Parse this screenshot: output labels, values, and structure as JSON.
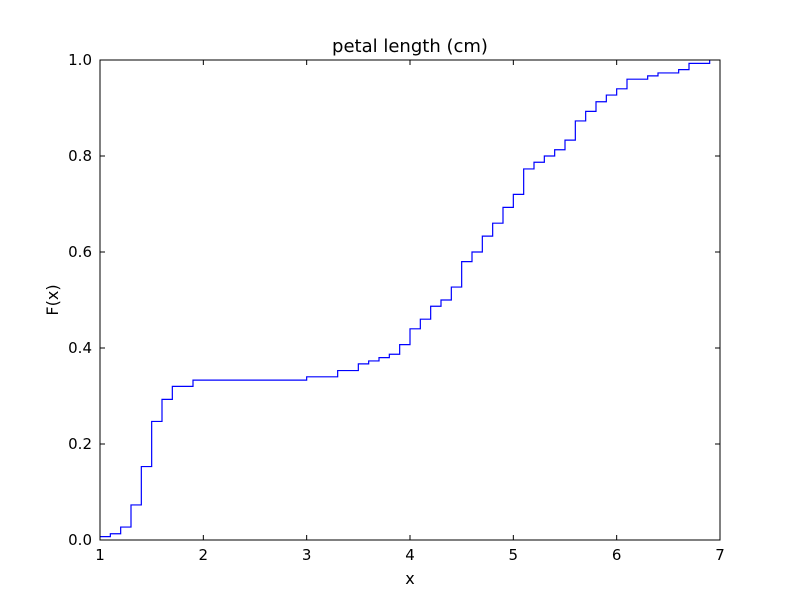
{
  "chart_data": {
    "type": "line",
    "step": "post",
    "title": "petal length (cm)",
    "xlabel": "x",
    "ylabel": "F(x)",
    "xlim": [
      1,
      7
    ],
    "ylim": [
      0,
      1
    ],
    "xticks": [
      1,
      2,
      3,
      4,
      5,
      6,
      7
    ],
    "xtick_labels": [
      "1",
      "2",
      "3",
      "4",
      "5",
      "6",
      "7"
    ],
    "yticks": [
      0,
      0.2,
      0.4,
      0.6,
      0.8,
      1.0
    ],
    "ytick_labels": [
      "0.0",
      "0.2",
      "0.4",
      "0.6",
      "0.8",
      "1.0"
    ],
    "grid": false,
    "legend": "none",
    "line_color": "#0000ff",
    "series": [
      {
        "x": [
          1.0,
          1.1,
          1.2,
          1.3,
          1.4,
          1.5,
          1.6,
          1.7,
          1.9,
          3.0,
          3.3,
          3.5,
          3.6,
          3.7,
          3.8,
          3.9,
          4.0,
          4.1,
          4.2,
          4.3,
          4.4,
          4.5,
          4.6,
          4.7,
          4.8,
          4.9,
          5.0,
          5.1,
          5.2,
          5.3,
          5.4,
          5.5,
          5.6,
          5.7,
          5.8,
          5.9,
          6.0,
          6.1,
          6.3,
          6.4,
          6.6,
          6.7,
          6.9
        ],
        "y": [
          0.007,
          0.013,
          0.027,
          0.073,
          0.153,
          0.247,
          0.293,
          0.32,
          0.333,
          0.34,
          0.353,
          0.367,
          0.373,
          0.38,
          0.387,
          0.407,
          0.44,
          0.46,
          0.487,
          0.5,
          0.527,
          0.58,
          0.6,
          0.633,
          0.66,
          0.693,
          0.72,
          0.773,
          0.787,
          0.8,
          0.813,
          0.833,
          0.873,
          0.893,
          0.913,
          0.927,
          0.94,
          0.96,
          0.967,
          0.973,
          0.98,
          0.993,
          1.0
        ]
      }
    ]
  }
}
